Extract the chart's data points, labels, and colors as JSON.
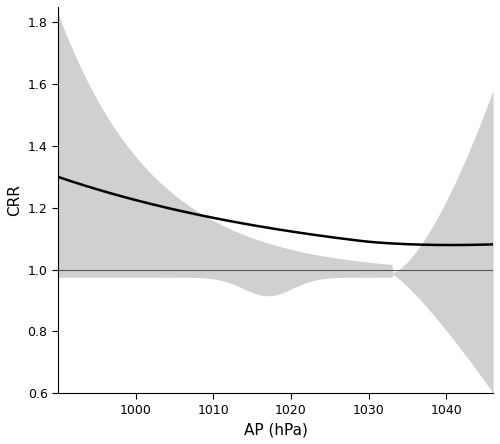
{
  "x_min": 990,
  "x_max": 1046,
  "y_min": 0.6,
  "y_max": 1.85,
  "x_ticks": [
    1000,
    1010,
    1020,
    1030,
    1040
  ],
  "y_ticks": [
    0.6,
    0.8,
    1.0,
    1.2,
    1.4,
    1.6,
    1.8
  ],
  "xlabel": "AP (hPa)",
  "ylabel": "CRR",
  "ref_line_y": 1.0,
  "background_color": "#ffffff",
  "ci_color": "#d0d0d0",
  "line_color": "#000000",
  "ref_color": "#555555",
  "figsize": [
    5.0,
    4.44
  ],
  "dpi": 100
}
